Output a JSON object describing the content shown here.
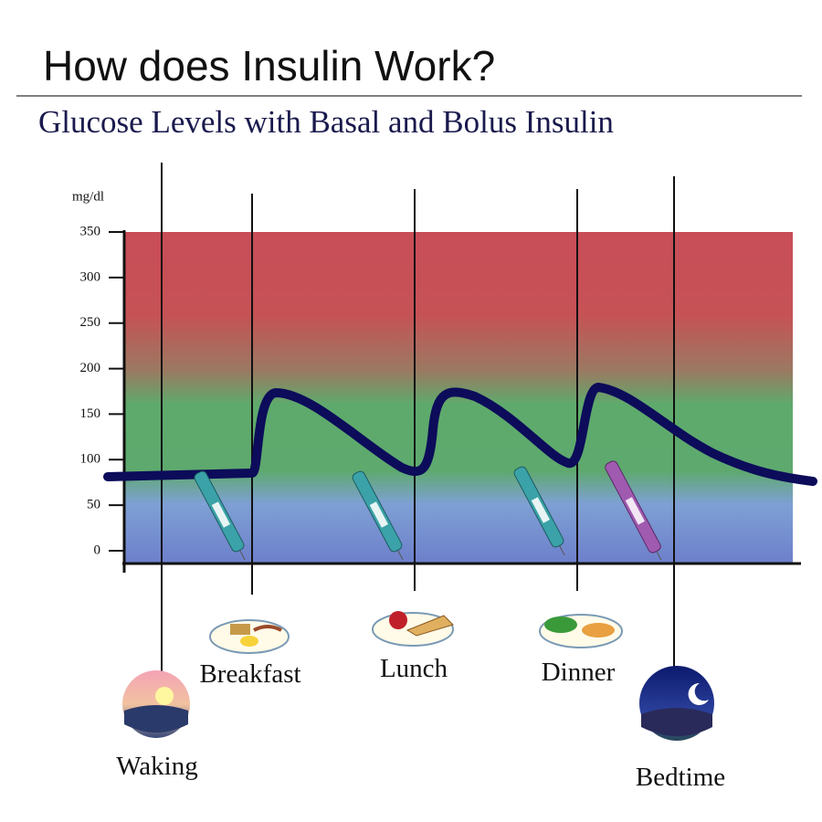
{
  "title": "How does Insulin Work?",
  "subtitle": "Glucose Levels with Basal and Bolus Insulin",
  "y_axis": {
    "label": "mg/dl",
    "ticks": [
      350,
      300,
      250,
      200,
      150,
      100,
      50,
      0
    ]
  },
  "events": [
    {
      "label": "Waking"
    },
    {
      "label": "Breakfast"
    },
    {
      "label": "Lunch"
    },
    {
      "label": "Dinner"
    },
    {
      "label": "Bedtime"
    }
  ]
}
